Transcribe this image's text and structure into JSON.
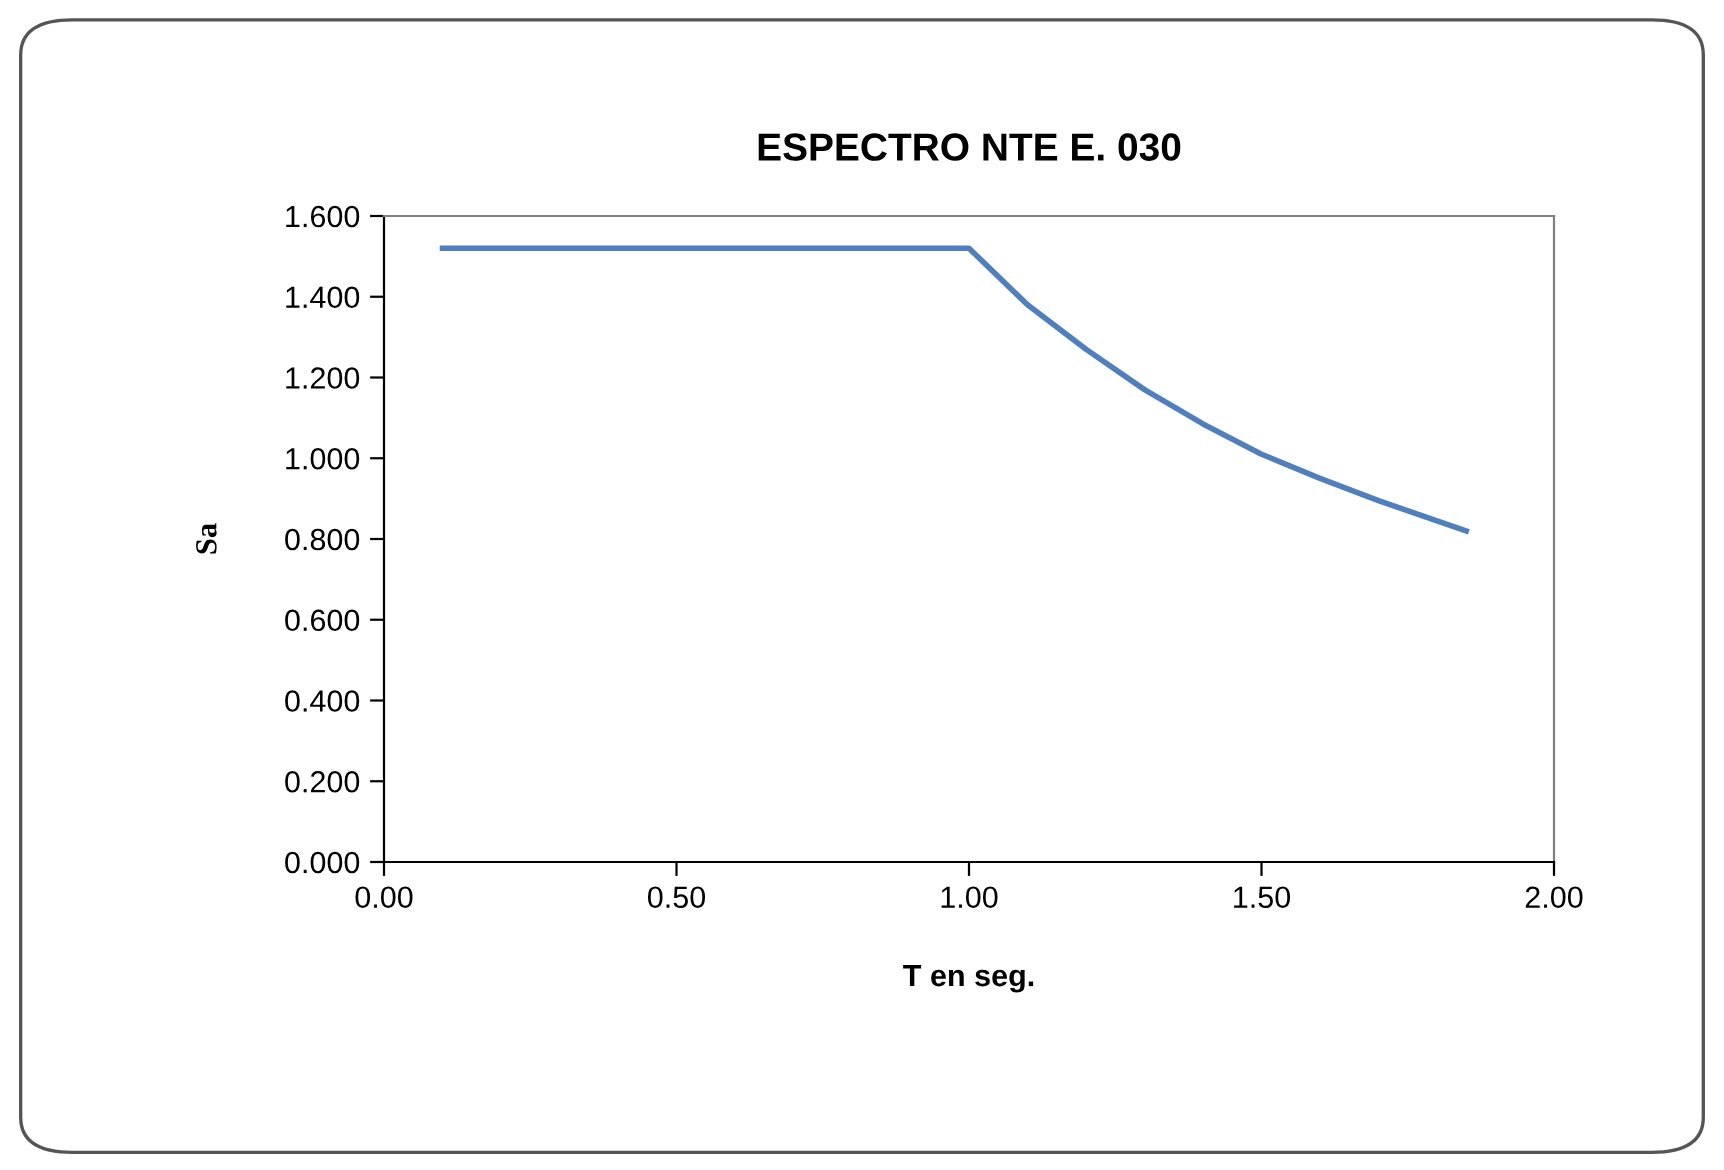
{
  "chart_data": {
    "type": "line",
    "title": "ESPECTRO NTE E. 030",
    "xlabel": "T en seg.",
    "ylabel": "Sa",
    "x": [
      0.1,
      0.2,
      0.3,
      0.4,
      0.5,
      0.6,
      0.7,
      0.8,
      0.9,
      0.98,
      1.0,
      1.05,
      1.1,
      1.2,
      1.3,
      1.4,
      1.5,
      1.6,
      1.7,
      1.8,
      1.85
    ],
    "series": [
      {
        "color": "#4f7fbd",
        "values": [
          1.52,
          1.52,
          1.52,
          1.52,
          1.52,
          1.52,
          1.52,
          1.52,
          1.52,
          1.52,
          1.52,
          1.45,
          1.38,
          1.27,
          1.17,
          1.085,
          1.01,
          0.95,
          0.895,
          0.845,
          0.82
        ]
      }
    ],
    "xlim": [
      0,
      2
    ],
    "xticks": [
      {
        "value": 0,
        "label": "0.00"
      },
      {
        "value": 0.5,
        "label": "0.50"
      },
      {
        "value": 1,
        "label": "1.00"
      },
      {
        "value": 1.5,
        "label": "1.50"
      },
      {
        "value": 2,
        "label": "2.00"
      }
    ],
    "ylim": [
      0,
      1.6
    ],
    "yticks": [
      {
        "value": 0,
        "label": "0.000"
      },
      {
        "value": 0.2,
        "label": "0.200"
      },
      {
        "value": 0.4,
        "label": "0.400"
      },
      {
        "value": 0.6,
        "label": "0.600"
      },
      {
        "value": 0.8,
        "label": "0.800"
      },
      {
        "value": 1.0,
        "label": "1.000"
      },
      {
        "value": 1.2,
        "label": "1.200"
      },
      {
        "value": 1.4,
        "label": "1.400"
      },
      {
        "value": 1.6,
        "label": "1.600"
      }
    ],
    "grid": false,
    "legend": false,
    "marker": "none",
    "line_style": "solid"
  }
}
